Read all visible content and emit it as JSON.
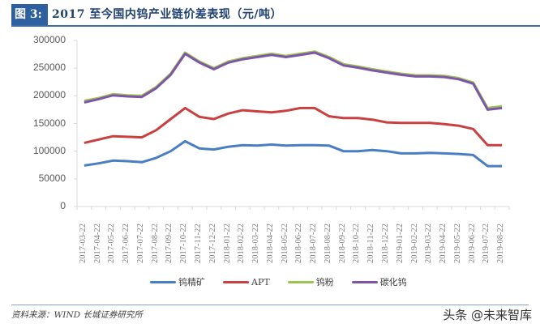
{
  "header": {
    "figure_label": "图 3:",
    "title": "2017 至今国内钨产业链价差表现（元/吨）"
  },
  "footer": {
    "source": "资料来源：WIND 长城证券研究所",
    "watermark": "头条 @未来智库"
  },
  "colors": {
    "钨精矿": "#4a7ec4",
    "APT": "#c94040",
    "钨粉": "#9bc34f",
    "碳化钨": "#7e55a8",
    "title_badge": "#2e5f9e",
    "title_text": "#1f3f6e"
  },
  "chart_data": {
    "type": "line",
    "title": "2017 至今国内钨产业链价差表现（元/吨）",
    "xlabel": "",
    "ylabel": "元/吨",
    "ylim": [
      0,
      300000
    ],
    "yticks": [
      "300000",
      "250000",
      "200000",
      "150000",
      "100000",
      "50000",
      "0"
    ],
    "grid": false,
    "legend_position": "bottom",
    "categories": [
      "2017-03-22",
      "2017-04-22",
      "2017-05-22",
      "2017-06-22",
      "2017-07-22",
      "2017-08-22",
      "2017-09-22",
      "2017-10-22",
      "2017-11-22",
      "2017-12-22",
      "2018-01-22",
      "2018-02-22",
      "2018-03-22",
      "2018-04-22",
      "2018-05-22",
      "2018-06-22",
      "2018-07-22",
      "2018-08-22",
      "2018-09-22",
      "2018-10-22",
      "2018-11-22",
      "2018-12-22",
      "2019-01-22",
      "2019-02-22",
      "2019-03-22",
      "2019-04-22",
      "2019-05-22",
      "2019-06-22",
      "2019-07-22",
      "2019-08-22"
    ],
    "series": [
      {
        "name": "钨精矿",
        "values": [
          74000,
          78000,
          83000,
          82000,
          80000,
          88000,
          100000,
          118000,
          105000,
          103000,
          108000,
          111000,
          110000,
          112000,
          110000,
          111000,
          111000,
          110000,
          100000,
          100000,
          102000,
          100000,
          96000,
          96000,
          97000,
          96000,
          95000,
          93000,
          73000,
          73000
        ]
      },
      {
        "name": "APT",
        "values": [
          115000,
          121000,
          127000,
          126000,
          125000,
          138000,
          158000,
          178000,
          162000,
          158000,
          168000,
          174000,
          172000,
          170000,
          173000,
          178000,
          178000,
          163000,
          160000,
          160000,
          157000,
          152000,
          151000,
          151000,
          151000,
          149000,
          146000,
          140000,
          111000,
          111000
        ]
      },
      {
        "name": "钨粉",
        "values": [
          191000,
          196000,
          203000,
          201000,
          200000,
          216000,
          240000,
          278000,
          262000,
          250000,
          262000,
          268000,
          272000,
          276000,
          272000,
          276000,
          280000,
          270000,
          257000,
          253000,
          248000,
          244000,
          240000,
          237000,
          237000,
          236000,
          232000,
          224000,
          178000,
          181000
        ]
      },
      {
        "name": "碳化钨",
        "values": [
          188000,
          194000,
          201000,
          199000,
          198000,
          214000,
          238000,
          276000,
          260000,
          248000,
          260000,
          266000,
          270000,
          274000,
          270000,
          274000,
          278000,
          268000,
          255000,
          251000,
          246000,
          242000,
          238000,
          235000,
          235000,
          234000,
          230000,
          222000,
          175000,
          178000
        ]
      }
    ]
  }
}
